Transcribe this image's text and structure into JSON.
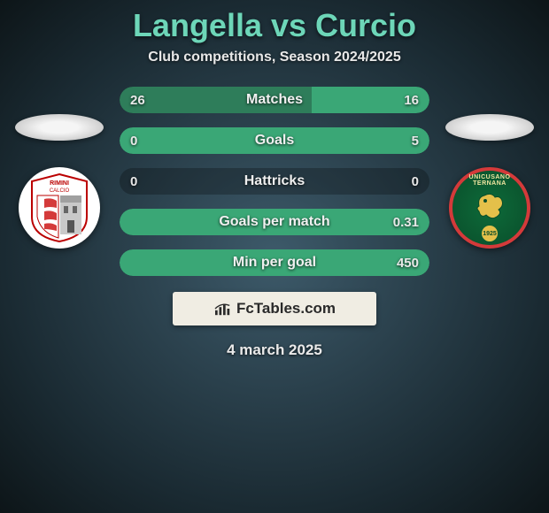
{
  "title": "Langella vs Curcio",
  "subtitle": "Club competitions, Season 2024/2025",
  "date": "4 march 2025",
  "colors": {
    "accent": "#6dd6b8",
    "bar_left": "#2e7d5a",
    "bar_right": "#38a673",
    "bar_neutral": "#2b6b50"
  },
  "players": {
    "left": {
      "name": "Langella",
      "crest_text_top": "RIMINI",
      "crest_text_sub": "CALCIO"
    },
    "right": {
      "name": "Curcio",
      "crest_text_top": "UNICUSANO",
      "crest_text_mid": "TERNANA",
      "crest_year": "1925"
    }
  },
  "stats": [
    {
      "label": "Matches",
      "left_value": "26",
      "right_value": "16",
      "left_pct": 62,
      "right_pct": 38,
      "left_color": "#2e7d5a",
      "right_color": "#3aa776"
    },
    {
      "label": "Goals",
      "left_value": "0",
      "right_value": "5",
      "left_pct": 0,
      "right_pct": 100,
      "left_color": "#2e7d5a",
      "right_color": "#3aa776"
    },
    {
      "label": "Hattricks",
      "left_value": "0",
      "right_value": "0",
      "left_pct": 0,
      "right_pct": 0,
      "left_color": "#2e7d5a",
      "right_color": "#3aa776"
    },
    {
      "label": "Goals per match",
      "left_value": "",
      "right_value": "0.31",
      "left_pct": 0,
      "right_pct": 100,
      "left_color": "#2e7d5a",
      "right_color": "#3aa776"
    },
    {
      "label": "Min per goal",
      "left_value": "",
      "right_value": "450",
      "left_pct": 0,
      "right_pct": 100,
      "left_color": "#2e7d5a",
      "right_color": "#3aa776"
    }
  ],
  "footer_brand": "FcTables.com"
}
